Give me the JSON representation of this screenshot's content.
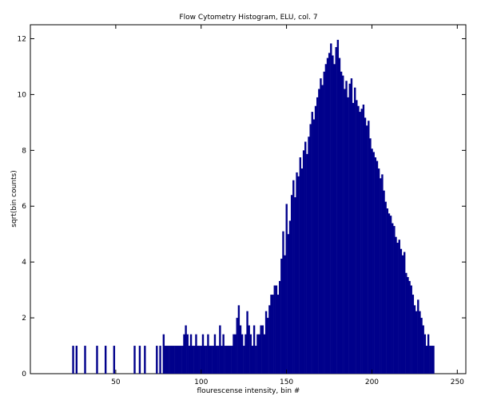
{
  "chart_data": {
    "type": "bar",
    "title": "Flow Cytometry Histogram, ELU, col. 7",
    "xlabel": "flourescense intensity, bin #",
    "ylabel": "sqrt(bin counts)",
    "xlim": [
      0,
      255
    ],
    "ylim": [
      0,
      12.5
    ],
    "xticks": [
      50,
      100,
      150,
      200,
      250
    ],
    "yticks": [
      0,
      2,
      4,
      6,
      8,
      10,
      12
    ],
    "grid": false,
    "bar_color": "#00008b",
    "bins": [
      [
        25,
        1
      ],
      [
        27,
        1
      ],
      [
        32,
        1
      ],
      [
        39,
        1
      ],
      [
        44,
        1
      ],
      [
        49,
        1
      ],
      [
        61,
        1
      ],
      [
        64,
        1
      ],
      [
        67,
        1
      ],
      [
        74,
        1
      ],
      [
        76,
        1
      ],
      [
        78,
        1.41
      ],
      [
        79,
        1
      ],
      [
        80,
        1
      ],
      [
        81,
        1
      ],
      [
        82,
        1
      ],
      [
        83,
        1
      ],
      [
        84,
        1
      ],
      [
        85,
        1
      ],
      [
        86,
        1
      ],
      [
        87,
        1
      ],
      [
        88,
        1
      ],
      [
        89,
        1
      ],
      [
        90,
        1.41
      ],
      [
        91,
        1.73
      ],
      [
        92,
        1.41
      ],
      [
        93,
        1
      ],
      [
        94,
        1.41
      ],
      [
        95,
        1
      ],
      [
        96,
        1
      ],
      [
        97,
        1.41
      ],
      [
        98,
        1
      ],
      [
        99,
        1
      ],
      [
        100,
        1
      ],
      [
        101,
        1.41
      ],
      [
        102,
        1
      ],
      [
        103,
        1
      ],
      [
        104,
        1.41
      ],
      [
        105,
        1
      ],
      [
        106,
        1
      ],
      [
        107,
        1
      ],
      [
        108,
        1.41
      ],
      [
        109,
        1
      ],
      [
        110,
        1
      ],
      [
        111,
        1.73
      ],
      [
        112,
        1
      ],
      [
        113,
        1.41
      ],
      [
        114,
        1
      ],
      [
        115,
        1
      ],
      [
        116,
        1
      ],
      [
        117,
        1
      ],
      [
        118,
        1
      ],
      [
        119,
        1.41
      ],
      [
        120,
        1.41
      ],
      [
        121,
        2
      ],
      [
        122,
        2.45
      ],
      [
        123,
        1.73
      ],
      [
        124,
        1.41
      ],
      [
        125,
        1
      ],
      [
        126,
        1.41
      ],
      [
        127,
        2.24
      ],
      [
        128,
        1.73
      ],
      [
        129,
        1.41
      ],
      [
        130,
        1
      ],
      [
        131,
        1.73
      ],
      [
        132,
        1
      ],
      [
        133,
        1.41
      ],
      [
        134,
        1.41
      ],
      [
        135,
        1.73
      ],
      [
        136,
        1.73
      ],
      [
        137,
        1.41
      ],
      [
        138,
        2.24
      ],
      [
        139,
        2
      ],
      [
        140,
        2.45
      ],
      [
        141,
        2.83
      ],
      [
        142,
        2.83
      ],
      [
        143,
        3.16
      ],
      [
        144,
        3.16
      ],
      [
        145,
        2.83
      ],
      [
        146,
        3.32
      ],
      [
        147,
        4.12
      ],
      [
        148,
        5.1
      ],
      [
        149,
        4.24
      ],
      [
        150,
        6.08
      ],
      [
        151,
        5
      ],
      [
        152,
        5.48
      ],
      [
        153,
        6.4
      ],
      [
        154,
        6.93
      ],
      [
        155,
        6.32
      ],
      [
        156,
        7.21
      ],
      [
        157,
        7.07
      ],
      [
        158,
        7.75
      ],
      [
        159,
        7.35
      ],
      [
        160,
        8
      ],
      [
        161,
        8.31
      ],
      [
        162,
        7.87
      ],
      [
        163,
        8.49
      ],
      [
        164,
        8.94
      ],
      [
        165,
        9.38
      ],
      [
        166,
        9.11
      ],
      [
        167,
        9.59
      ],
      [
        168,
        9.9
      ],
      [
        169,
        10.2
      ],
      [
        170,
        10.58
      ],
      [
        171,
        10.34
      ],
      [
        172,
        10.82
      ],
      [
        173,
        11.09
      ],
      [
        174,
        11.31
      ],
      [
        175,
        11.49
      ],
      [
        176,
        11.83
      ],
      [
        177,
        11.4
      ],
      [
        178,
        11.09
      ],
      [
        179,
        11.7
      ],
      [
        180,
        11.96
      ],
      [
        181,
        11.31
      ],
      [
        182,
        10.82
      ],
      [
        183,
        10.68
      ],
      [
        184,
        10.2
      ],
      [
        185,
        10.49
      ],
      [
        186,
        9.9
      ],
      [
        187,
        10.39
      ],
      [
        188,
        10.58
      ],
      [
        189,
        9.7
      ],
      [
        190,
        10.25
      ],
      [
        191,
        9.8
      ],
      [
        192,
        9.59
      ],
      [
        193,
        9.38
      ],
      [
        194,
        9.49
      ],
      [
        195,
        9.64
      ],
      [
        196,
        9.17
      ],
      [
        197,
        8.89
      ],
      [
        198,
        9.06
      ],
      [
        199,
        8.43
      ],
      [
        200,
        8.06
      ],
      [
        201,
        7.94
      ],
      [
        202,
        7.75
      ],
      [
        203,
        7.62
      ],
      [
        204,
        7.35
      ],
      [
        205,
        7
      ],
      [
        206,
        7.14
      ],
      [
        207,
        6.56
      ],
      [
        208,
        6.16
      ],
      [
        209,
        5.92
      ],
      [
        210,
        5.74
      ],
      [
        211,
        5.66
      ],
      [
        212,
        5.39
      ],
      [
        213,
        5.29
      ],
      [
        214,
        4.9
      ],
      [
        215,
        4.69
      ],
      [
        216,
        4.8
      ],
      [
        217,
        4.47
      ],
      [
        218,
        4.24
      ],
      [
        219,
        4.36
      ],
      [
        220,
        3.61
      ],
      [
        221,
        3.46
      ],
      [
        222,
        3.32
      ],
      [
        223,
        3.16
      ],
      [
        224,
        2.83
      ],
      [
        225,
        2.45
      ],
      [
        226,
        2.24
      ],
      [
        227,
        2.65
      ],
      [
        228,
        2.24
      ],
      [
        229,
        2
      ],
      [
        230,
        1.73
      ],
      [
        231,
        1.41
      ],
      [
        232,
        1
      ],
      [
        233,
        1.41
      ],
      [
        234,
        1
      ],
      [
        235,
        1
      ],
      [
        236,
        1
      ]
    ]
  }
}
